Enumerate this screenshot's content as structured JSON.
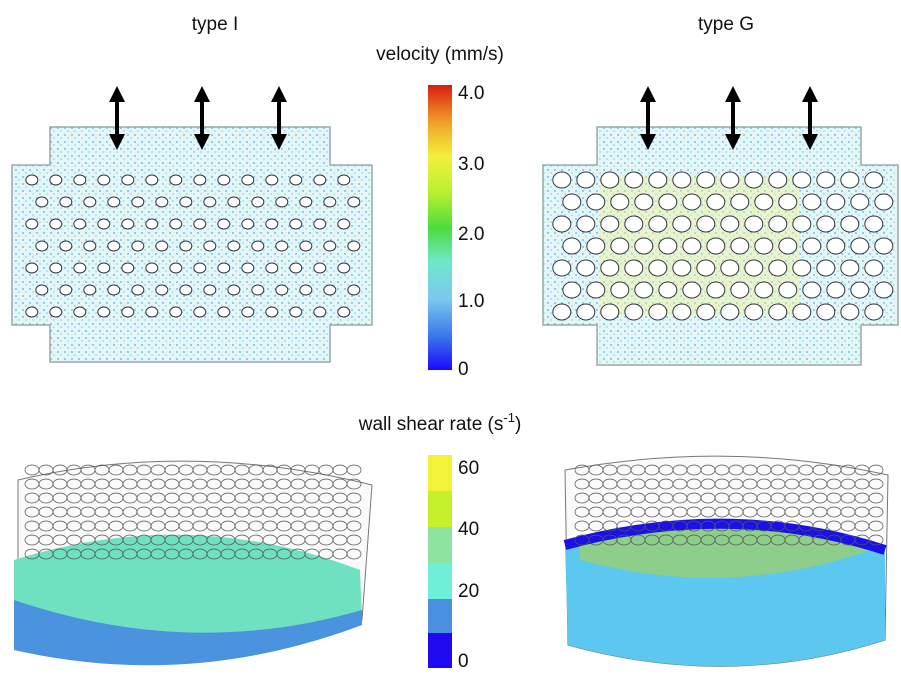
{
  "panels": {
    "type_i": "type I",
    "type_g": "type G"
  },
  "velocity_bar": {
    "title": "velocity (mm/s)",
    "ticks": [
      "4.0",
      "3.0",
      "2.0",
      "1.0",
      "0"
    ]
  },
  "shear_bar": {
    "title": "wall shear rate (s",
    "title_sup": "-1",
    "title_end": ")",
    "ticks": [
      "60",
      "40",
      "20",
      "0"
    ]
  }
}
